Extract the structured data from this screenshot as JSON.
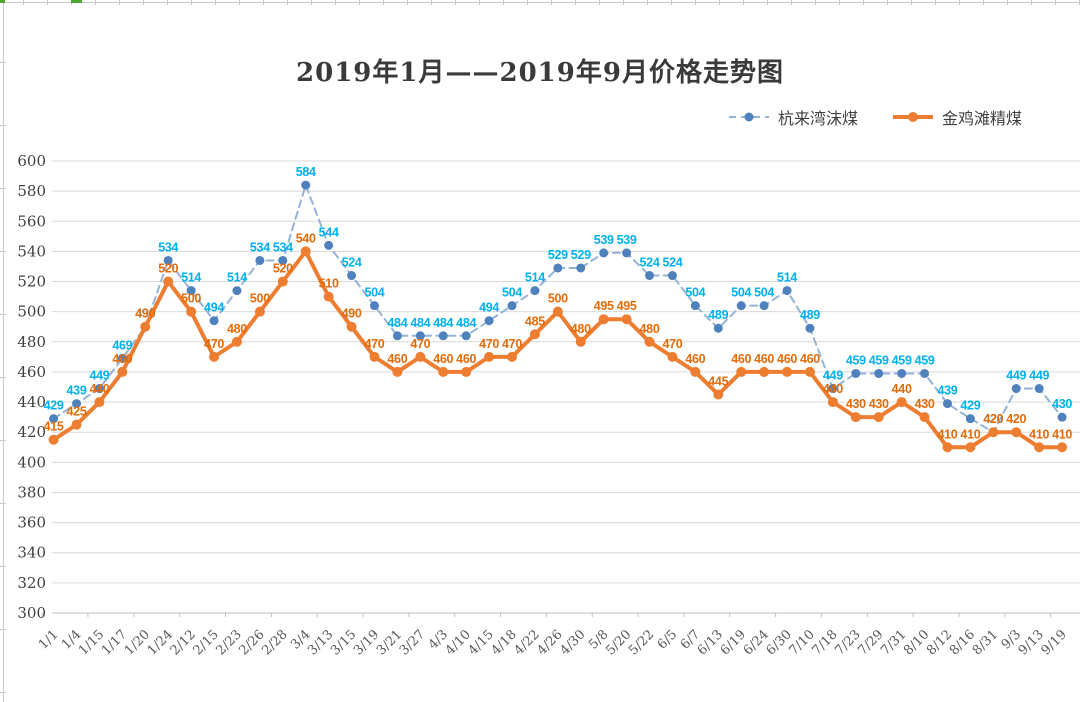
{
  "sheet": {
    "edge_color": "#C9C9C9",
    "selection_color": "#4EA72E"
  },
  "chart_data": {
    "type": "line",
    "title": "2019年1月——2019年9月价格走势图",
    "categories": [
      "1/1",
      "1/4",
      "1/15",
      "1/17",
      "1/20",
      "1/24",
      "2/12",
      "2/15",
      "2/23",
      "2/26",
      "2/28",
      "3/4",
      "3/13",
      "3/15",
      "3/19",
      "3/21",
      "3/27",
      "4/3",
      "4/10",
      "4/15",
      "4/18",
      "4/22",
      "4/26",
      "4/30",
      "5/8",
      "5/20",
      "5/22",
      "6/5",
      "6/7",
      "6/13",
      "6/19",
      "6/24",
      "6/30",
      "7/10",
      "7/18",
      "7/23",
      "7/29",
      "7/31",
      "8/10",
      "8/12",
      "8/16",
      "8/31",
      "9/3",
      "9/13",
      "9/19"
    ],
    "series": [
      {
        "name": "杭来湾沫煤",
        "values": [
          429,
          439,
          449,
          469,
          490,
          534,
          514,
          494,
          514,
          534,
          534,
          584,
          544,
          524,
          504,
          484,
          484,
          484,
          484,
          494,
          504,
          514,
          529,
          529,
          539,
          539,
          524,
          524,
          504,
          489,
          504,
          504,
          514,
          489,
          449,
          459,
          459,
          459,
          459,
          439,
          429,
          420,
          449,
          449,
          430
        ],
        "line_style": "dashed",
        "line_color": "#95B3D7",
        "marker_color": "#4F81BD",
        "label_color": "#00B0F0",
        "line_width": 2,
        "marker_radius": 4.5
      },
      {
        "name": "金鸡滩精煤",
        "values": [
          415,
          425,
          440,
          460,
          490,
          520,
          500,
          470,
          480,
          500,
          520,
          540,
          510,
          490,
          470,
          460,
          470,
          460,
          460,
          470,
          470,
          485,
          500,
          480,
          495,
          495,
          480,
          470,
          460,
          445,
          460,
          460,
          460,
          460,
          440,
          430,
          430,
          440,
          430,
          410,
          410,
          420,
          420,
          410,
          410
        ],
        "line_style": "solid",
        "line_color": "#ED7D31",
        "marker_color": "#ED7D31",
        "label_color": "#E36C0A",
        "line_width": 4,
        "marker_radius": 5
      }
    ],
    "y_axis": {
      "min": 300,
      "max": 600,
      "step": 20,
      "ticks": [
        600,
        580,
        560,
        540,
        520,
        500,
        480,
        460,
        440,
        420,
        400,
        380,
        360,
        340,
        320,
        300
      ]
    },
    "x_axis": {
      "label_rotation_deg": -45
    },
    "grid": true,
    "legend_position": "top-right",
    "colors": {
      "grid": "#D9D9D9",
      "axis": "#BFBFBF",
      "axis_text": "#404040",
      "x_axis_text": "#595959",
      "background": "#FFFFFF"
    }
  }
}
